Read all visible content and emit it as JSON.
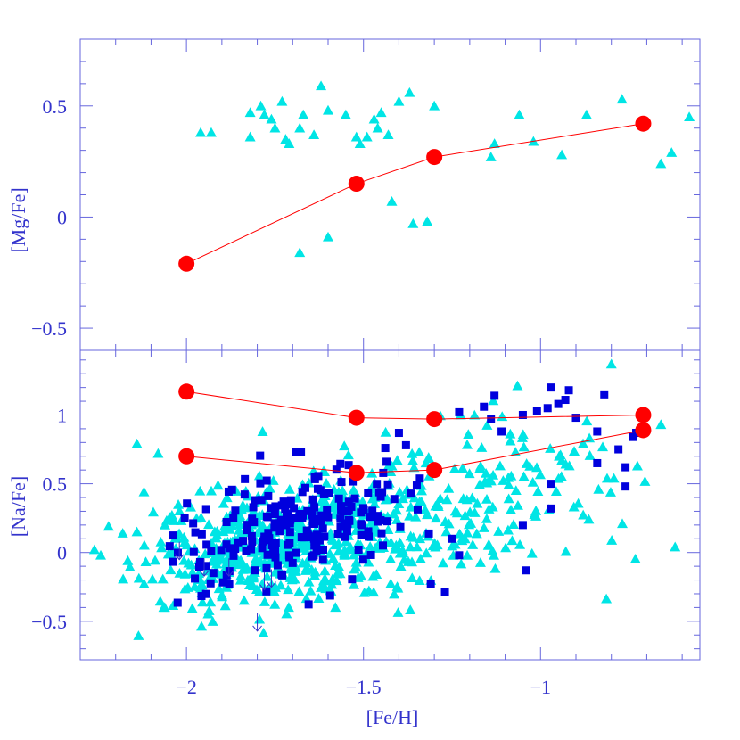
{
  "chart_data": [
    {
      "type": "scatter",
      "panel": "top",
      "xlabel": "[Fe/H]",
      "ylabel": "[Mg/Fe]",
      "xlim": [
        -2.3,
        -0.55
      ],
      "ylim": [
        -0.6,
        0.8
      ],
      "x_ticks": [
        "-2",
        "-1.5",
        "-1"
      ],
      "y_ticks": [
        "-0.5",
        "0",
        "0.5"
      ],
      "colors": {
        "triangles": "#00e5e5",
        "means": "#ff0000",
        "line": "#ff0000",
        "axis": "#3333cc"
      },
      "series": [
        {
          "marker": "triangle",
          "points": [
            [
              -2.0,
              -0.21
            ],
            [
              -1.52,
              0.15
            ],
            [
              -1.3,
              0.27
            ],
            [
              -0.71,
              0.42
            ]
          ]
        }
      ],
      "triangles": [
        [
          -1.96,
          0.38
        ],
        [
          -1.93,
          0.38
        ],
        [
          -1.82,
          0.47
        ],
        [
          -1.82,
          0.36
        ],
        [
          -1.79,
          0.5
        ],
        [
          -1.78,
          0.46
        ],
        [
          -1.76,
          0.44
        ],
        [
          -1.75,
          0.4
        ],
        [
          -1.73,
          0.52
        ],
        [
          -1.72,
          0.35
        ],
        [
          -1.71,
          0.33
        ],
        [
          -1.68,
          0.4
        ],
        [
          -1.67,
          0.46
        ],
        [
          -1.64,
          0.37
        ],
        [
          -1.62,
          0.59
        ],
        [
          -1.6,
          0.48
        ],
        [
          -1.55,
          0.46
        ],
        [
          -1.52,
          0.36
        ],
        [
          -1.51,
          0.33
        ],
        [
          -1.49,
          0.36
        ],
        [
          -1.47,
          0.44
        ],
        [
          -1.46,
          0.4
        ],
        [
          -1.45,
          0.47
        ],
        [
          -1.43,
          0.37
        ],
        [
          -1.4,
          0.52
        ],
        [
          -1.37,
          0.56
        ],
        [
          -1.3,
          0.5
        ],
        [
          -1.13,
          0.33
        ],
        [
          -1.14,
          0.27
        ],
        [
          -1.06,
          0.46
        ],
        [
          -1.02,
          0.34
        ],
        [
          -0.94,
          0.28
        ],
        [
          -0.87,
          0.46
        ],
        [
          -0.77,
          0.53
        ],
        [
          -0.66,
          0.24
        ],
        [
          -0.63,
          0.29
        ],
        [
          -0.58,
          0.45
        ],
        [
          -1.68,
          -0.16
        ],
        [
          -1.6,
          -0.09
        ],
        [
          -1.42,
          0.07
        ],
        [
          -1.36,
          -0.03
        ],
        [
          -1.32,
          -0.02
        ]
      ]
    },
    {
      "type": "scatter",
      "panel": "bottom",
      "xlabel": "[Fe/H]",
      "ylabel": "[Na/Fe]",
      "xlim": [
        -2.3,
        -0.55
      ],
      "ylim": [
        -0.78,
        1.47
      ],
      "x_ticks": [
        "-2",
        "-1.5",
        "-1"
      ],
      "y_ticks": [
        "-0.5",
        "0",
        "0.5",
        "1"
      ],
      "colors": {
        "triangles": "#00e5e5",
        "squares": "#0000dd",
        "means": "#ff0000",
        "line": "#ff0000"
      },
      "series": [
        {
          "marker": "triangle",
          "points": [
            [
              -2.0,
              1.17
            ],
            [
              -1.52,
              0.98
            ],
            [
              -1.3,
              0.97
            ],
            [
              -0.71,
              1.0
            ]
          ]
        },
        {
          "marker": "square",
          "points": [
            [
              -2.0,
              0.7
            ],
            [
              -1.52,
              0.58
            ],
            [
              -1.3,
              0.6
            ],
            [
              -0.71,
              0.89
            ]
          ]
        }
      ],
      "upper_limits": [
        [
          -2.02,
          0.0
        ],
        [
          -1.95,
          -0.12
        ],
        [
          -1.88,
          -0.12
        ],
        [
          -1.8,
          -0.52
        ],
        [
          -1.78,
          -0.22
        ],
        [
          -1.76,
          -0.2
        ]
      ],
      "squares_extra": [
        [
          -1.4,
          0.87
        ],
        [
          -1.38,
          0.78
        ],
        [
          -1.23,
          1.02
        ],
        [
          -1.16,
          1.06
        ],
        [
          -1.14,
          0.97
        ],
        [
          -1.13,
          1.14
        ],
        [
          -1.11,
          0.88
        ],
        [
          -1.05,
          1.0
        ],
        [
          -1.01,
          1.03
        ],
        [
          -0.98,
          1.05
        ],
        [
          -0.97,
          1.2
        ],
        [
          -0.95,
          1.08
        ],
        [
          -0.93,
          1.11
        ],
        [
          -0.92,
          1.18
        ],
        [
          -0.9,
          0.98
        ],
        [
          -0.84,
          0.88
        ],
        [
          -0.82,
          1.15
        ],
        [
          -0.78,
          0.75
        ],
        [
          -0.76,
          0.62
        ],
        [
          -0.74,
          0.84
        ],
        [
          -0.73,
          0.87
        ],
        [
          -0.84,
          0.65
        ],
        [
          -0.76,
          0.48
        ],
        [
          -0.97,
          0.5
        ],
        [
          -1.05,
          0.2
        ],
        [
          -1.23,
          -0.02
        ],
        [
          -1.25,
          0.1
        ],
        [
          -1.31,
          -0.23
        ],
        [
          -1.27,
          -0.29
        ],
        [
          -1.04,
          -0.13
        ],
        [
          -0.97,
          0.32
        ]
      ]
    }
  ]
}
